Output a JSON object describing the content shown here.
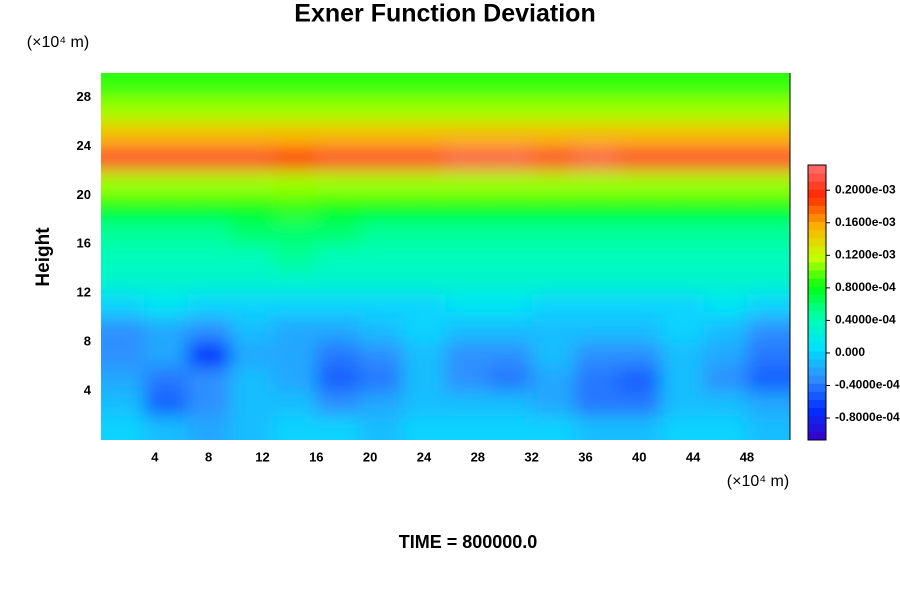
{
  "chart_data": {
    "type": "contour",
    "title": "Exner Function Deviation",
    "ylabel": "Height",
    "x_unit": "(×10⁴ m)",
    "y_unit": "(×10⁴ m)",
    "caption": "TIME = 800000.0",
    "x": [
      1.6,
      4.8,
      8,
      11.2,
      14.4,
      17.6,
      20.8,
      24,
      27.2,
      30.4,
      33.6,
      36.8,
      40,
      43.2,
      46.4,
      49.6
    ],
    "y": [
      1,
      3,
      5,
      7,
      9,
      11,
      13,
      15,
      17,
      19,
      21,
      23,
      25,
      27,
      29
    ],
    "z": [
      [
        0,
        -1e-05,
        -2e-05,
        -1e-05,
        0,
        0,
        -1e-05,
        0,
        0,
        0,
        0,
        -1e-05,
        -1e-05,
        0,
        0,
        -1e-05
      ],
      [
        -1e-05,
        -5e-05,
        -3e-05,
        -1e-05,
        -1e-05,
        -3e-05,
        -2e-05,
        -1e-05,
        -1e-05,
        -1e-05,
        -2e-05,
        -4e-05,
        -4e-05,
        -1e-05,
        -1e-05,
        -2e-05
      ],
      [
        -2e-05,
        -4e-05,
        -3e-05,
        -1e-05,
        -2e-05,
        -5e-05,
        -4e-05,
        -1e-05,
        -3e-05,
        -4e-05,
        -2e-05,
        -4e-05,
        -5e-05,
        -1e-05,
        -3e-05,
        -5e-05
      ],
      [
        -3e-05,
        -2e-05,
        -7e-05,
        -2e-05,
        -2e-05,
        -4e-05,
        -3e-05,
        -1e-05,
        -3e-05,
        -3e-05,
        -1e-05,
        -3e-05,
        -3e-05,
        -1e-05,
        -2e-05,
        -4e-05
      ],
      [
        -3e-05,
        -2e-05,
        -3e-05,
        -1e-05,
        -2e-05,
        -2e-05,
        -1e-05,
        0,
        -1e-05,
        -1e-05,
        -1e-05,
        -1e-05,
        -1e-05,
        0,
        -1e-05,
        -3e-05
      ],
      [
        0,
        1e-05,
        0,
        0,
        0,
        0,
        0,
        0,
        1e-05,
        1e-05,
        0,
        0,
        0,
        0,
        1e-05,
        0
      ],
      [
        3e-05,
        3e-05,
        3e-05,
        3e-05,
        3e-05,
        3e-05,
        3e-05,
        3e-05,
        3e-05,
        3e-05,
        3e-05,
        3e-05,
        3e-05,
        3e-05,
        3e-05,
        3e-05
      ],
      [
        4e-05,
        4e-05,
        4e-05,
        4e-05,
        5e-05,
        4e-05,
        4e-05,
        4e-05,
        4e-05,
        4e-05,
        4e-05,
        4e-05,
        4e-05,
        4e-05,
        4e-05,
        4e-05
      ],
      [
        5e-05,
        5e-05,
        5e-05,
        6e-05,
        6e-05,
        6e-05,
        5e-05,
        5e-05,
        5e-05,
        5e-05,
        5e-05,
        5e-05,
        5e-05,
        5e-05,
        5e-05,
        5e-05
      ],
      [
        8e-05,
        8e-05,
        8e-05,
        8e-05,
        9e-05,
        8e-05,
        8e-05,
        8e-05,
        8e-05,
        8e-05,
        8e-05,
        8e-05,
        8e-05,
        8e-05,
        8e-05,
        8e-05
      ],
      [
        0.00011,
        0.00011,
        0.00011,
        0.00011,
        0.00011,
        0.00011,
        0.00011,
        0.00011,
        0.00011,
        0.00011,
        0.00011,
        0.00011,
        0.00011,
        0.00011,
        0.00011,
        0.00011
      ],
      [
        0.00021,
        0.00021,
        0.00021,
        0.00021,
        0.0002,
        0.00021,
        0.00021,
        0.00021,
        0.00022,
        0.00022,
        0.00021,
        0.00022,
        0.00021,
        0.00021,
        0.00021,
        0.00021
      ],
      [
        0.00015,
        0.00015,
        0.00015,
        0.00015,
        0.00015,
        0.00015,
        0.00015,
        0.00015,
        0.00015,
        0.00015,
        0.00015,
        0.00015,
        0.00015,
        0.00015,
        0.00015,
        0.00015
      ],
      [
        0.00011,
        0.00011,
        0.00011,
        0.00011,
        0.00011,
        0.00011,
        0.00011,
        0.00011,
        0.00011,
        0.00011,
        0.00011,
        0.00011,
        0.00011,
        0.00011,
        0.00011,
        0.00011
      ],
      [
        9e-05,
        9e-05,
        9e-05,
        9e-05,
        9e-05,
        9e-05,
        9e-05,
        9e-05,
        9e-05,
        9e-05,
        9e-05,
        9e-05,
        9e-05,
        9e-05,
        9e-05,
        9e-05
      ]
    ],
    "xlim": [
      0,
      51.2
    ],
    "ylim": [
      0,
      30
    ],
    "xticks": [
      4,
      8,
      12,
      16,
      20,
      24,
      28,
      32,
      36,
      40,
      44,
      48
    ],
    "yticks": [
      4,
      8,
      12,
      16,
      20,
      24,
      28
    ],
    "zlim": [
      -0.000107,
      0.000231
    ],
    "zticks": [
      {
        "value": -8e-05,
        "label": "-0.8000e-04"
      },
      {
        "value": -4e-05,
        "label": "-0.4000e-04"
      },
      {
        "value": 0,
        "label": "0.000"
      },
      {
        "value": 4e-05,
        "label": "0.4000e-04"
      },
      {
        "value": 8e-05,
        "label": "0.8000e-04"
      },
      {
        "value": 0.00012,
        "label": "0.1200e-03"
      },
      {
        "value": 0.00016,
        "label": "0.1600e-03"
      },
      {
        "value": 0.0002,
        "label": "0.2000e-03"
      }
    ],
    "colormap": [
      "#3a00c8",
      "#0030ff",
      "#2f8cff",
      "#00e0ff",
      "#00ffb4",
      "#00ff10",
      "#c8ff00",
      "#ffb000",
      "#ff2800",
      "#ff7070"
    ]
  }
}
